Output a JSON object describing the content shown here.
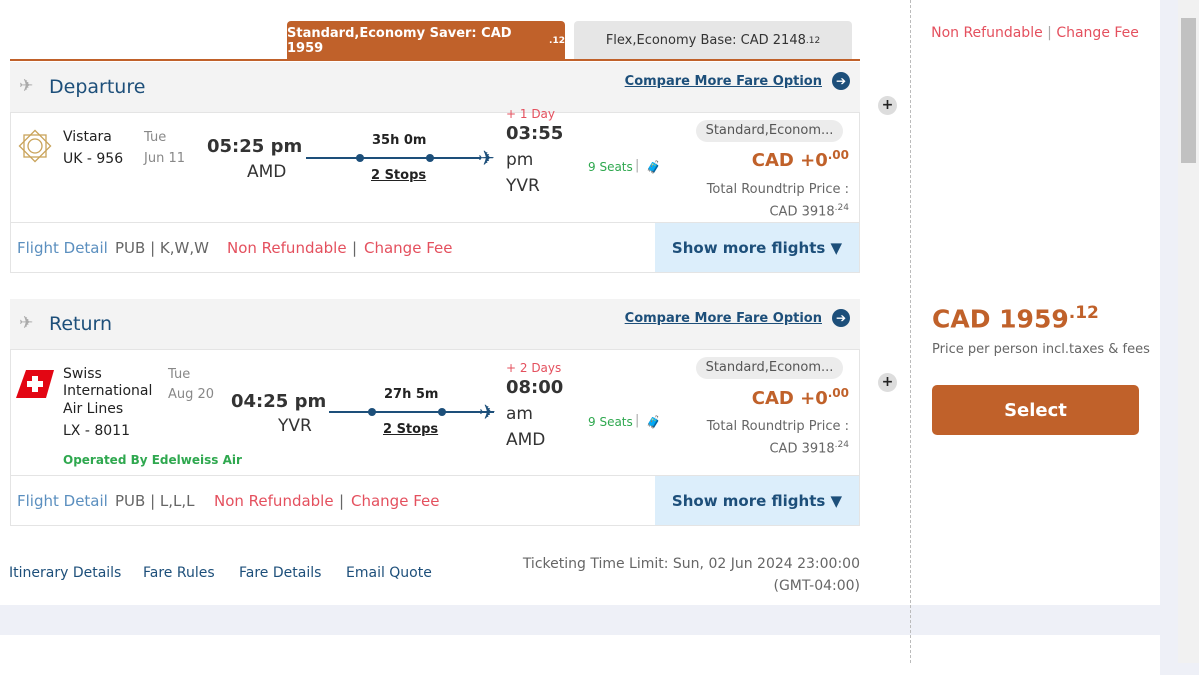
{
  "tabs": [
    {
      "label": "Standard,Economy Saver: CAD 1959",
      "cents": ".12"
    },
    {
      "label": "Flex,Economy Base: CAD 2148",
      "cents": ".12"
    }
  ],
  "compare_label": "Compare More Fare Option",
  "departure": {
    "title": "Departure",
    "airline": "Vistara",
    "flight_no": "UK - 956",
    "day": "Tue",
    "date": "Jun 11",
    "dep_time": "05:25 pm",
    "dep_airport": "AMD",
    "duration": "35h 0m",
    "stops": "2 Stops",
    "day_offset": "+ 1 Day",
    "arr_time": "03:55",
    "arr_ampm": "pm",
    "arr_airport": "YVR",
    "seats": "9 Seats",
    "fare_pill": "Standard,Econom...",
    "price": "CAD +0",
    "price_cents": ".00",
    "total_label": "Total Roundtrip Price :",
    "total": "CAD 3918",
    "total_cents": ".24",
    "flight_detail": "Flight Detail",
    "class_codes": "PUB | K,W,W",
    "non_refundable": "Non Refundable",
    "change_fee": "Change Fee",
    "show_more": "Show more flights"
  },
  "return": {
    "title": "Return",
    "airline": "Swiss International Air Lines",
    "airline_l1": "Swiss",
    "airline_l2": "International",
    "airline_l3": "Air Lines",
    "flight_no": "LX - 8011",
    "operated_by": "Operated By Edelweiss Air",
    "day": "Tue",
    "date": "Aug 20",
    "dep_time": "04:25 pm",
    "dep_airport": "YVR",
    "duration": "27h 5m",
    "stops": "2 Stops",
    "day_offset": "+ 2 Days",
    "arr_time": "08:00",
    "arr_ampm": "am",
    "arr_airport": "AMD",
    "seats": "9 Seats",
    "fare_pill": "Standard,Econom...",
    "price": "CAD +0",
    "price_cents": ".00",
    "total_label": "Total Roundtrip Price :",
    "total": "CAD 3918",
    "total_cents": ".24",
    "flight_detail": "Flight Detail",
    "class_codes": "PUB | L,L,L",
    "non_refundable": "Non Refundable",
    "change_fee": "Change Fee",
    "show_more": "Show more flights"
  },
  "links": [
    "Itinerary Details",
    "Fare Rules",
    "Fare Details",
    "Email Quote"
  ],
  "ticketing": "Ticketing Time Limit: Sun, 02 Jun 2024 23:00:00 (GMT-04:00)",
  "side": {
    "non_refundable": "Non Refundable",
    "sep": "|",
    "change_fee": "Change Fee",
    "price": "CAD 1959",
    "price_cents": ".12",
    "price_note": "Price per person incl.taxes & fees",
    "select": "Select"
  },
  "colors": {
    "accent": "#c0612a",
    "primary": "#1d4f7a",
    "refund_red": "#e4505e",
    "seats_green": "#2fa84f"
  }
}
